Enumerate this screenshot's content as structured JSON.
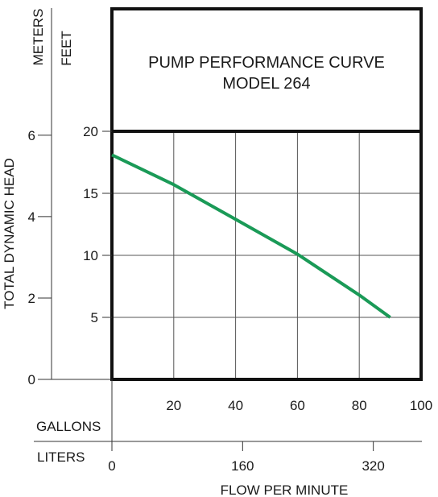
{
  "chart_data": {
    "type": "line",
    "title": "PUMP PERFORMANCE CURVE",
    "subtitle": "MODEL 264",
    "ylabel": "TOTAL DYNAMIC HEAD",
    "xlabel": "FLOW PER MINUTE",
    "y_units": {
      "meters": "METERS",
      "feet": "FEET"
    },
    "x_units": {
      "gallons": "GALLONS",
      "liters": "LITERS"
    },
    "feet_ticks": [
      "5",
      "10",
      "15",
      "20"
    ],
    "meters_ticks": [
      "0",
      "2",
      "4",
      "6"
    ],
    "gallons_ticks": [
      "20",
      "40",
      "60",
      "80",
      "100"
    ],
    "liters_ticks": [
      "0",
      "160",
      "320"
    ],
    "xlim_gallons": [
      0,
      100
    ],
    "ylim_feet": [
      0,
      20
    ],
    "grid": true,
    "line_color": "#1a9a57",
    "series": [
      {
        "x": [
          0,
          20,
          40,
          60,
          80,
          90
        ],
        "y": [
          18.1,
          15.7,
          12.9,
          10.1,
          6.8,
          5.0
        ]
      }
    ]
  }
}
